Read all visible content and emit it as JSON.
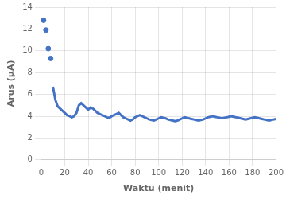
{
  "chart_data": {
    "type": "scatter",
    "xlabel": "Waktu (menit)",
    "ylabel": "Arus (μA)",
    "xlim": [
      0,
      200
    ],
    "ylim": [
      0,
      14
    ],
    "xticks": [
      0,
      20,
      40,
      60,
      80,
      100,
      120,
      140,
      160,
      180,
      200
    ],
    "yticks": [
      0,
      2,
      4,
      6,
      8,
      10,
      12,
      14
    ],
    "grid": true,
    "series": [
      {
        "type": "scatter",
        "marker": "circle",
        "color": "#4472C4",
        "x": [
          2,
          4,
          6,
          8
        ],
        "values": [
          12.8,
          11.9,
          10.2,
          9.3
        ]
      },
      {
        "type": "line",
        "line_style": "solid",
        "color": "#4472C4",
        "x": [
          10,
          12,
          14,
          16,
          18,
          20,
          22,
          24,
          26,
          28,
          30,
          32,
          34,
          36,
          38,
          40,
          42,
          44,
          46,
          48,
          50,
          52,
          54,
          56,
          58,
          60,
          62,
          64,
          66,
          68,
          70,
          72,
          74,
          76,
          78,
          80,
          82,
          84,
          86,
          88,
          90,
          92,
          94,
          96,
          98,
          100,
          102,
          104,
          106,
          108,
          110,
          112,
          114,
          116,
          118,
          120,
          122,
          124,
          126,
          128,
          130,
          132,
          134,
          136,
          138,
          140,
          142,
          144,
          146,
          148,
          150,
          152,
          154,
          156,
          158,
          160,
          162,
          164,
          166,
          168,
          170,
          172,
          174,
          176,
          178,
          180,
          182,
          184,
          186,
          188,
          190,
          192,
          194,
          196,
          198,
          200
        ],
        "values": [
          6.7,
          5.5,
          4.9,
          4.7,
          4.5,
          4.3,
          4.1,
          4.0,
          3.9,
          4.0,
          4.3,
          5.0,
          5.2,
          5.0,
          4.8,
          4.6,
          4.8,
          4.7,
          4.5,
          4.3,
          4.2,
          4.1,
          4.0,
          3.9,
          3.85,
          4.0,
          4.1,
          4.2,
          4.3,
          4.1,
          3.9,
          3.8,
          3.7,
          3.6,
          3.7,
          3.9,
          4.0,
          4.1,
          4.0,
          3.9,
          3.8,
          3.7,
          3.65,
          3.6,
          3.7,
          3.8,
          3.9,
          3.85,
          3.8,
          3.7,
          3.65,
          3.6,
          3.55,
          3.6,
          3.7,
          3.8,
          3.9,
          3.85,
          3.8,
          3.75,
          3.7,
          3.65,
          3.6,
          3.65,
          3.7,
          3.8,
          3.9,
          3.95,
          4.0,
          3.95,
          3.9,
          3.85,
          3.8,
          3.85,
          3.9,
          3.95,
          4.0,
          3.95,
          3.9,
          3.85,
          3.8,
          3.75,
          3.7,
          3.75,
          3.8,
          3.85,
          3.9,
          3.85,
          3.8,
          3.75,
          3.7,
          3.65,
          3.6,
          3.65,
          3.7,
          3.75
        ]
      }
    ]
  }
}
